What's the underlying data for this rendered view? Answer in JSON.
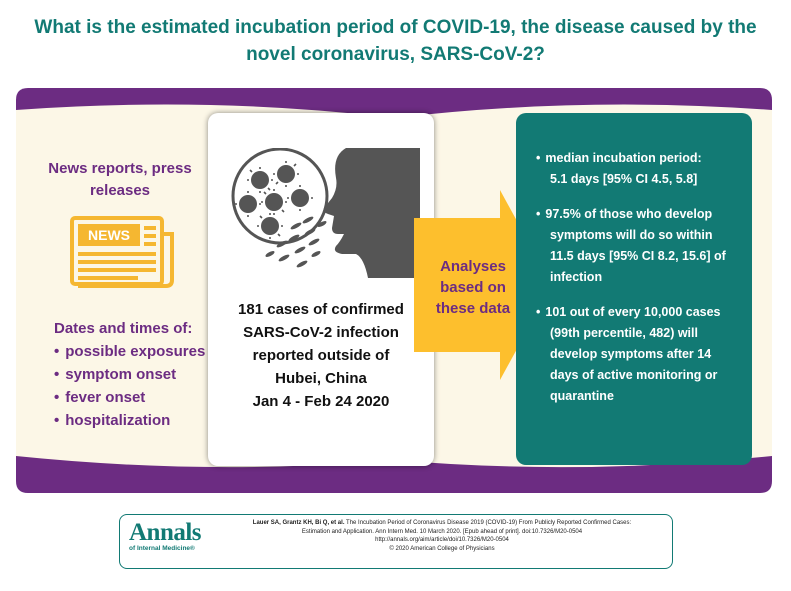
{
  "title": {
    "line1": "What is the estimated incubation period of COVID-19, the disease caused by the",
    "line2": "novel coronavirus, SARS-CoV-2?"
  },
  "colors": {
    "teal": "#127a74",
    "purple": "#6c2c82",
    "beige": "#fcf7e7",
    "yellow": "#fdbf2d",
    "newspaper": "#f5b731"
  },
  "left": {
    "heading_line1": "News reports, press",
    "heading_line2": "releases",
    "icon": "newspaper-icon",
    "icon_text": "NEWS",
    "dates_heading": "Dates and times of:",
    "items": [
      "possible exposures",
      "symptom onset",
      "fever onset",
      "hospitalization"
    ]
  },
  "center": {
    "icons": [
      "virus-particles-icon",
      "person-coughing-icon"
    ],
    "lines": [
      "181 cases of confirmed",
      "SARS-CoV-2 infection",
      "reported outside of",
      "Hubei, China",
      "Jan 4 - Feb 24 2020"
    ]
  },
  "arrow": {
    "icon": "arrow-right-icon",
    "line1": "Analyses",
    "line2": "based on",
    "line3": "these data"
  },
  "findings": [
    {
      "lines": [
        "median incubation period:",
        "5.1 days [95% CI 4.5, 5.8]"
      ]
    },
    {
      "lines": [
        "97.5% of those who develop",
        "symptoms will do so within",
        "11.5 days [95% CI 8.2, 15.6] of",
        "infection"
      ]
    },
    {
      "lines": [
        "101 out of every 10,000 cases",
        "(99th percentile, 482) will",
        "develop symptoms after 14",
        "days of active monitoring or",
        "quarantine"
      ]
    }
  ],
  "footer": {
    "logo_main": "Annals",
    "logo_sub": "of Internal Medicine®",
    "authors": "Lauer SA, Grantz KH, Bi Q, et al.",
    "article_title": "The Incubation Period of Coronavirus Disease 2019 (COVID-19) From Publicly Reported Confirmed Cases:",
    "line2": "Estimation and Application. Ann Intern Med. 10 March 2020. [Epub ahead of print]. doi:10.7326/M20-0504",
    "line3": "http://annals.org/aim/article/doi/10.7326/M20-0504",
    "copyright": "© 2020 American College of Physicians"
  }
}
